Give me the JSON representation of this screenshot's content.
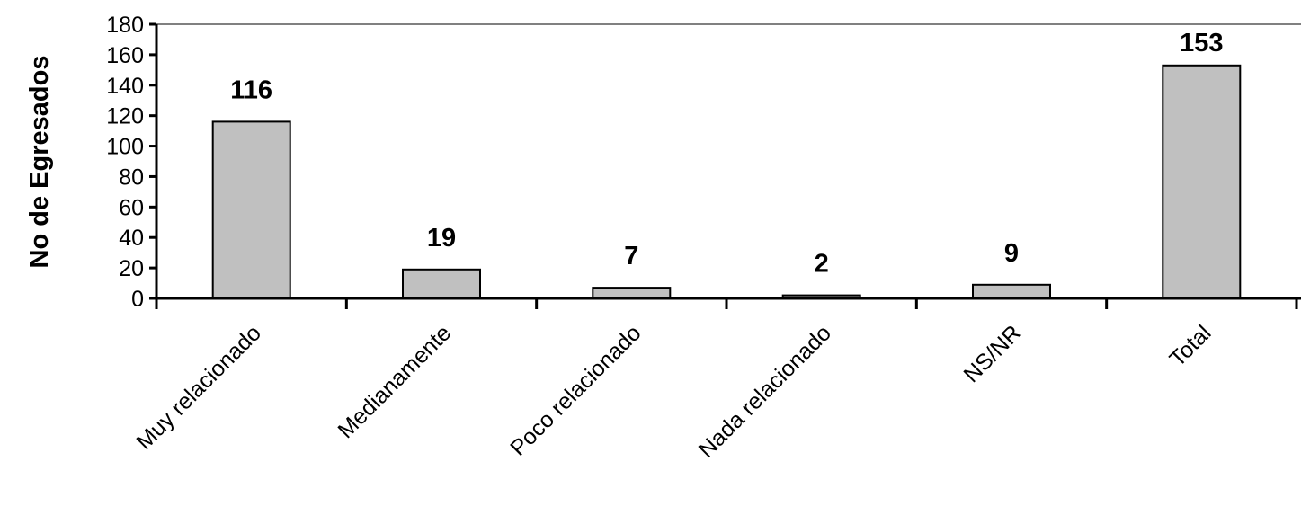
{
  "chart_data": {
    "type": "bar",
    "title": "",
    "xlabel": "",
    "ylabel": "No de Egresados",
    "categories": [
      "Muy relacionado",
      "Medianamente",
      "Poco relacionado",
      "Nada relacionado",
      "NS/NR",
      "Total"
    ],
    "values": [
      116,
      19,
      7,
      2,
      9,
      153
    ],
    "data_labels": [
      "116",
      "19",
      "7",
      "2",
      "9",
      "153"
    ],
    "ylim": [
      0,
      180
    ],
    "yticks": [
      "0",
      "20",
      "40",
      "60",
      "80",
      "100",
      "120",
      "140",
      "160",
      "180"
    ],
    "grid": false,
    "legend": "none",
    "colors": {
      "bar_fill": "#c0c0c0",
      "bar_stroke": "#000000",
      "axis": "#000000",
      "top_border": "#808080"
    }
  }
}
